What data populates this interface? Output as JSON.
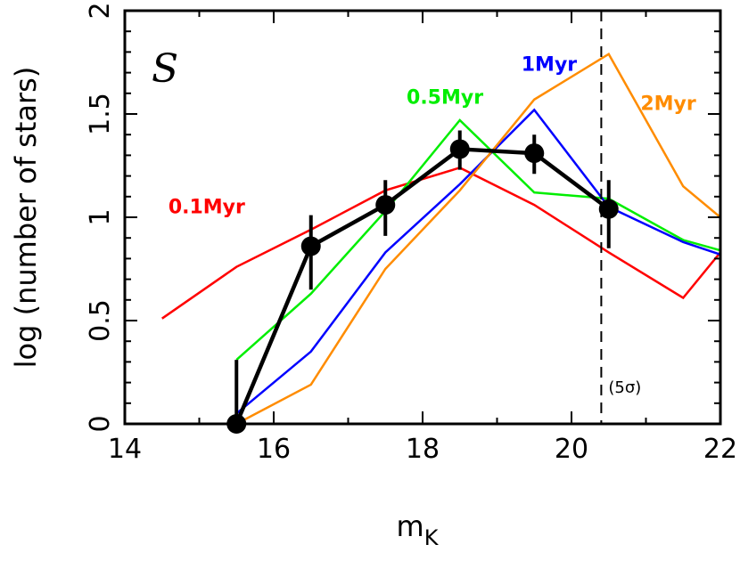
{
  "chart_data": {
    "type": "line",
    "xlabel": "m",
    "xlabel_subscript": "K",
    "ylabel": "log (number of stars)",
    "xlim": [
      14,
      22
    ],
    "ylim": [
      0,
      2
    ],
    "xticks": [
      14,
      16,
      18,
      20,
      22
    ],
    "yticks": [
      0,
      0.5,
      1,
      1.5,
      2
    ],
    "ytick_labels": [
      "0",
      "0.5",
      "1",
      "1.5",
      "2"
    ],
    "panel_label": "S",
    "vline": {
      "x": 20.4,
      "label": "(5σ)",
      "style": "dashed"
    },
    "grid": false,
    "series": [
      {
        "name": "0.1Myr",
        "color": "#ff0000",
        "x": [
          14.5,
          15.5,
          16.5,
          17.5,
          18.5,
          19.5,
          20.5,
          21.5,
          22
        ],
        "y": [
          0.51,
          0.76,
          0.94,
          1.13,
          1.24,
          1.06,
          0.83,
          0.61,
          0.83
        ]
      },
      {
        "name": "0.5Myr",
        "color": "#00ee00",
        "x": [
          15.5,
          16.5,
          17.5,
          18.5,
          19.5,
          20.5,
          21.5,
          22
        ],
        "y": [
          0.31,
          0.63,
          1.03,
          1.47,
          1.12,
          1.09,
          0.89,
          0.84
        ]
      },
      {
        "name": "1Myr",
        "color": "#0000ff",
        "x": [
          15.5,
          16.5,
          17.5,
          18.5,
          19.5,
          20.5,
          21.5,
          22
        ],
        "y": [
          0.05,
          0.35,
          0.83,
          1.16,
          1.52,
          1.05,
          0.88,
          0.82
        ]
      },
      {
        "name": "2Myr",
        "color": "#ff8c00",
        "x": [
          15.5,
          16.5,
          17.5,
          18.5,
          19.5,
          20.5,
          21.5,
          22
        ],
        "y": [
          0.0,
          0.19,
          0.75,
          1.13,
          1.57,
          1.79,
          1.15,
          1.0
        ]
      }
    ],
    "observed": {
      "color": "#000000",
      "x": [
        15.5,
        16.5,
        17.5,
        18.5,
        19.5,
        20.5
      ],
      "y": [
        0.0,
        0.86,
        1.06,
        1.33,
        1.31,
        1.04
      ],
      "err_low": [
        0.0,
        0.65,
        0.91,
        1.23,
        1.21,
        0.85
      ],
      "err_high": [
        0.31,
        1.01,
        1.18,
        1.42,
        1.4,
        1.18
      ]
    }
  }
}
